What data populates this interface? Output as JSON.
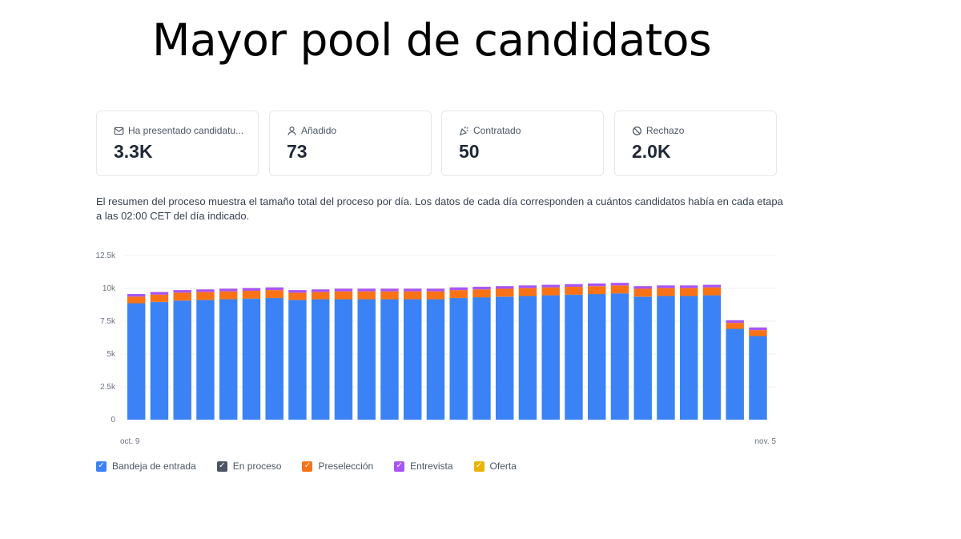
{
  "title": "Mayor pool de candidatos",
  "cards": [
    {
      "label": "Ha presentado candidatu...",
      "value": "3.3K",
      "icon": "mail-icon"
    },
    {
      "label": "Añadido",
      "value": "73",
      "icon": "user-icon"
    },
    {
      "label": "Contratado",
      "value": "50",
      "icon": "party-popper-icon"
    },
    {
      "label": "Rechazo",
      "value": "2.0K",
      "icon": "ban-icon"
    }
  ],
  "description": "El resumen del proceso muestra el tamaño total del proceso por día. Los datos de cada día corresponden a cuántos candidatos había en cada etapa a las 02:00 CET del día indicado.",
  "chart_data": {
    "type": "bar",
    "stacked": true,
    "ylim": [
      0,
      12500
    ],
    "yticks": [
      0,
      2500,
      5000,
      7500,
      10000,
      12500
    ],
    "ytick_labels": [
      "0",
      "2.5k",
      "5k",
      "7.5k",
      "10k",
      "12.5k"
    ],
    "x_start_label": "oct. 9",
    "x_end_label": "nov. 5",
    "grid": true,
    "legend_position": "bottom-left",
    "series": [
      {
        "name": "Bandeja de entrada",
        "color": "#3b82f6",
        "values": [
          8850,
          8950,
          9050,
          9100,
          9150,
          9200,
          9250,
          9100,
          9150,
          9150,
          9150,
          9150,
          9150,
          9150,
          9250,
          9300,
          9350,
          9400,
          9450,
          9500,
          9550,
          9600,
          9350,
          9400,
          9400,
          9450,
          6900,
          6350
        ]
      },
      {
        "name": "En proceso",
        "color": "#4b5563",
        "values": [
          20,
          20,
          20,
          20,
          20,
          20,
          20,
          20,
          20,
          20,
          20,
          20,
          20,
          20,
          20,
          20,
          20,
          20,
          20,
          20,
          20,
          20,
          20,
          20,
          20,
          20,
          20,
          20
        ]
      },
      {
        "name": "Preselección",
        "color": "#f97316",
        "values": [
          500,
          550,
          600,
          600,
          600,
          600,
          600,
          550,
          550,
          600,
          600,
          600,
          600,
          600,
          600,
          600,
          600,
          600,
          600,
          600,
          600,
          600,
          600,
          600,
          600,
          600,
          450,
          450
        ]
      },
      {
        "name": "Entrevista",
        "color": "#a855f7",
        "values": [
          200,
          200,
          200,
          200,
          200,
          200,
          200,
          200,
          200,
          200,
          200,
          200,
          200,
          200,
          200,
          200,
          200,
          200,
          200,
          200,
          200,
          200,
          200,
          200,
          200,
          200,
          200,
          200
        ]
      },
      {
        "name": "Oferta",
        "color": "#eab308",
        "values": [
          5,
          5,
          5,
          5,
          5,
          5,
          5,
          5,
          5,
          5,
          5,
          5,
          5,
          5,
          5,
          5,
          5,
          5,
          5,
          5,
          5,
          5,
          5,
          5,
          5,
          5,
          5,
          5
        ]
      }
    ]
  }
}
